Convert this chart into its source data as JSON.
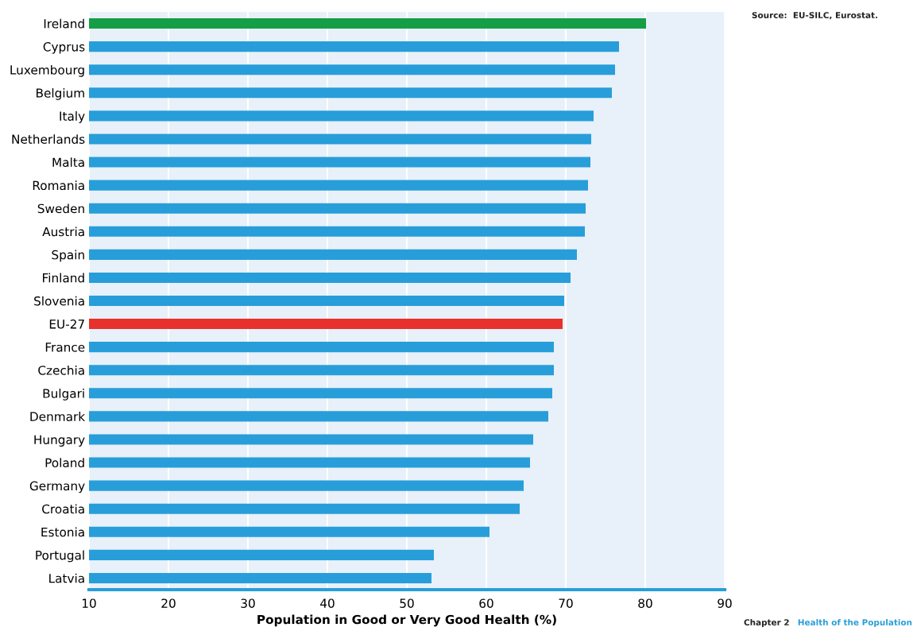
{
  "chart_data": {
    "type": "bar",
    "orientation": "horizontal",
    "xlabel": "Population in Good or Very Good Health (%)",
    "categories": [
      "Ireland",
      "Cyprus",
      "Luxembourg",
      "Belgium",
      "Italy",
      "Netherlands",
      "Malta",
      "Romania",
      "Sweden",
      "Austria",
      "Spain",
      "Finland",
      "Slovenia",
      "EU-27",
      "France",
      "Czechia",
      "Bulgari",
      "Denmark",
      "Hungary",
      "Poland",
      "Germany",
      "Croatia",
      "Estonia",
      "Portugal",
      "Latvia"
    ],
    "values": [
      80.1,
      76.7,
      76.2,
      75.8,
      73.5,
      73.2,
      73.1,
      72.8,
      72.5,
      72.4,
      71.4,
      70.6,
      69.8,
      69.6,
      68.5,
      68.5,
      68.3,
      67.8,
      65.9,
      65.5,
      64.7,
      64.2,
      60.4,
      53.4,
      53.1
    ],
    "colors": [
      "#159e45",
      "#279ed9",
      "#279ed9",
      "#279ed9",
      "#279ed9",
      "#279ed9",
      "#279ed9",
      "#279ed9",
      "#279ed9",
      "#279ed9",
      "#279ed9",
      "#279ed9",
      "#279ed9",
      "#e8302d",
      "#279ed9",
      "#279ed9",
      "#279ed9",
      "#279ed9",
      "#279ed9",
      "#279ed9",
      "#279ed9",
      "#279ed9",
      "#279ed9",
      "#279ed9",
      "#279ed9"
    ],
    "xlim": [
      10,
      90
    ],
    "xticks": [
      10,
      20,
      30,
      40,
      50,
      60,
      70,
      80,
      90
    ],
    "grid": "x",
    "annotations": [
      "Source:  EU-SILC, Eurostat.",
      "Chapter 2",
      "Health of the Population"
    ]
  }
}
